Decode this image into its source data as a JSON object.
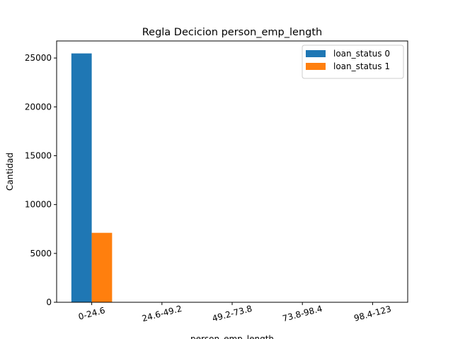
{
  "chart_data": {
    "type": "bar",
    "title": "Regla Decicion person_emp_length",
    "xlabel": "person_emp_length",
    "ylabel": "Cantidad",
    "categories": [
      "0-24.6",
      "24.6-49.2",
      "49.2-73.8",
      "73.8-98.4",
      "98.4-123"
    ],
    "series": [
      {
        "name": "loan_status 0",
        "values": [
          25470,
          2,
          0,
          0,
          0
        ],
        "color": "#1f77b4"
      },
      {
        "name": "loan_status 1",
        "values": [
          7108,
          0,
          0,
          0,
          0
        ],
        "color": "#ff7f0e"
      }
    ],
    "ylim": [
      0,
      26744
    ],
    "yticks": [
      0,
      5000,
      10000,
      15000,
      20000,
      25000
    ],
    "grid": false,
    "legend": "top-right"
  }
}
